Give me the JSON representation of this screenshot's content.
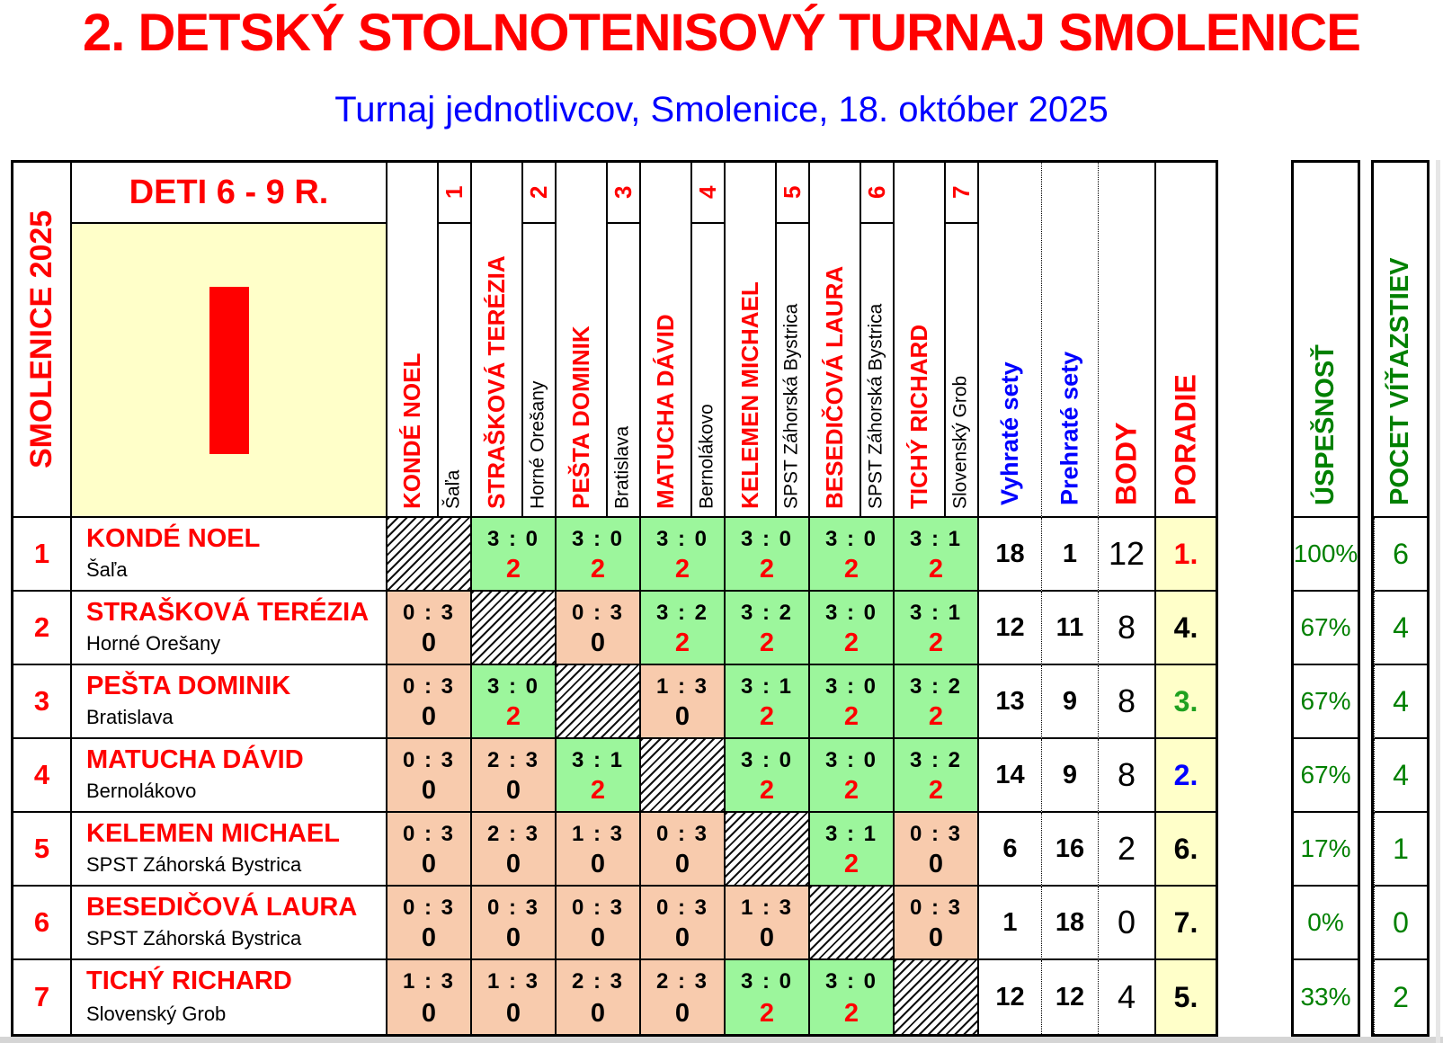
{
  "title": "2. DETSKÝ STOLNOTENISOVÝ TURNAJ SMOLENICE",
  "subtitle": "Turnaj jednotlivcov, Smolenice, 18. október 2025",
  "labels": {
    "season": "SMOLENICE 2025",
    "category": "DETI 6 - 9 R.",
    "numeral": "I",
    "won": "Vyhraté sety",
    "lost": "Prehraté sety",
    "body": "BODY",
    "rank": "PORADIE",
    "success": "ÚSPEŠNOSŤ",
    "wins": "POCET VÍŤAZSTIEV"
  },
  "colors": {
    "red": "#FF0000",
    "blue": "#0000FF",
    "green": "#008000",
    "rank_green": "#1FA11F",
    "black": "#000000",
    "win_bg": "#9CF69C",
    "loss_bg": "#F8CBAD",
    "panel_bg": "#FFFFC9"
  },
  "players": [
    {
      "num": "1",
      "name": "KONDÉ NOEL",
      "club": "Šaľa"
    },
    {
      "num": "2",
      "name": "STRAŠKOVÁ TERÉZIA",
      "club": "Horné Orešany"
    },
    {
      "num": "3",
      "name": "PEŠTA DOMINIK",
      "club": "Bratislava"
    },
    {
      "num": "4",
      "name": "MATUCHA DÁVID",
      "club": "Bernolákovo"
    },
    {
      "num": "5",
      "name": "KELEMEN MICHAEL",
      "club": "SPST Záhorská Bystrica"
    },
    {
      "num": "6",
      "name": "BESEDIČOVÁ LAURA",
      "club": "SPST Záhorská Bystrica"
    },
    {
      "num": "7",
      "name": "TICHÝ RICHARD",
      "club": "Slovenský Grob"
    }
  ],
  "results": [
    {
      "cells": [
        null,
        {
          "score": "3 : 0",
          "pts": "2",
          "win": true
        },
        {
          "score": "3 : 0",
          "pts": "2",
          "win": true
        },
        {
          "score": "3 : 0",
          "pts": "2",
          "win": true
        },
        {
          "score": "3 : 0",
          "pts": "2",
          "win": true
        },
        {
          "score": "3 : 0",
          "pts": "2",
          "win": true
        },
        {
          "score": "3 : 1",
          "pts": "2",
          "win": true
        }
      ],
      "won": "18",
      "lost": "1",
      "body": "12",
      "rank": "1.",
      "rank_color": "#FF0000",
      "success": "100%",
      "wins": "6"
    },
    {
      "cells": [
        {
          "score": "0 : 3",
          "pts": "0",
          "win": false
        },
        null,
        {
          "score": "0 : 3",
          "pts": "0",
          "win": false
        },
        {
          "score": "3 : 2",
          "pts": "2",
          "win": true
        },
        {
          "score": "3 : 2",
          "pts": "2",
          "win": true
        },
        {
          "score": "3 : 0",
          "pts": "2",
          "win": true
        },
        {
          "score": "3 : 1",
          "pts": "2",
          "win": true
        }
      ],
      "won": "12",
      "lost": "11",
      "body": "8",
      "rank": "4.",
      "rank_color": "#000000",
      "success": "67%",
      "wins": "4"
    },
    {
      "cells": [
        {
          "score": "0 : 3",
          "pts": "0",
          "win": false
        },
        {
          "score": "3 : 0",
          "pts": "2",
          "win": true
        },
        null,
        {
          "score": "1 : 3",
          "pts": "0",
          "win": false
        },
        {
          "score": "3 : 1",
          "pts": "2",
          "win": true
        },
        {
          "score": "3 : 0",
          "pts": "2",
          "win": true
        },
        {
          "score": "3 : 2",
          "pts": "2",
          "win": true
        }
      ],
      "won": "13",
      "lost": "9",
      "body": "8",
      "rank": "3.",
      "rank_color": "#1FA11F",
      "success": "67%",
      "wins": "4"
    },
    {
      "cells": [
        {
          "score": "0 : 3",
          "pts": "0",
          "win": false
        },
        {
          "score": "2 : 3",
          "pts": "0",
          "win": false
        },
        {
          "score": "3 : 1",
          "pts": "2",
          "win": true
        },
        null,
        {
          "score": "3 : 0",
          "pts": "2",
          "win": true
        },
        {
          "score": "3 : 0",
          "pts": "2",
          "win": true
        },
        {
          "score": "3 : 2",
          "pts": "2",
          "win": true
        }
      ],
      "won": "14",
      "lost": "9",
      "body": "8",
      "rank": "2.",
      "rank_color": "#0000FF",
      "success": "67%",
      "wins": "4"
    },
    {
      "cells": [
        {
          "score": "0 : 3",
          "pts": "0",
          "win": false
        },
        {
          "score": "2 : 3",
          "pts": "0",
          "win": false
        },
        {
          "score": "1 : 3",
          "pts": "0",
          "win": false
        },
        {
          "score": "0 : 3",
          "pts": "0",
          "win": false
        },
        null,
        {
          "score": "3 : 1",
          "pts": "2",
          "win": true
        },
        {
          "score": "0 : 3",
          "pts": "0",
          "win": false
        }
      ],
      "won": "6",
      "lost": "16",
      "body": "2",
      "rank": "6.",
      "rank_color": "#000000",
      "success": "17%",
      "wins": "1"
    },
    {
      "cells": [
        {
          "score": "0 : 3",
          "pts": "0",
          "win": false
        },
        {
          "score": "0 : 3",
          "pts": "0",
          "win": false
        },
        {
          "score": "0 : 3",
          "pts": "0",
          "win": false
        },
        {
          "score": "0 : 3",
          "pts": "0",
          "win": false
        },
        {
          "score": "1 : 3",
          "pts": "0",
          "win": false
        },
        null,
        {
          "score": "0 : 3",
          "pts": "0",
          "win": false
        }
      ],
      "won": "1",
      "lost": "18",
      "body": "0",
      "rank": "7.",
      "rank_color": "#000000",
      "success": "0%",
      "wins": "0"
    },
    {
      "cells": [
        {
          "score": "1 : 3",
          "pts": "0",
          "win": false
        },
        {
          "score": "1 : 3",
          "pts": "0",
          "win": false
        },
        {
          "score": "2 : 3",
          "pts": "0",
          "win": false
        },
        {
          "score": "2 : 3",
          "pts": "0",
          "win": false
        },
        {
          "score": "3 : 0",
          "pts": "2",
          "win": true
        },
        {
          "score": "3 : 0",
          "pts": "2",
          "win": true
        },
        null
      ],
      "won": "12",
      "lost": "12",
      "body": "4",
      "rank": "5.",
      "rank_color": "#000000",
      "success": "33%",
      "wins": "2"
    }
  ]
}
